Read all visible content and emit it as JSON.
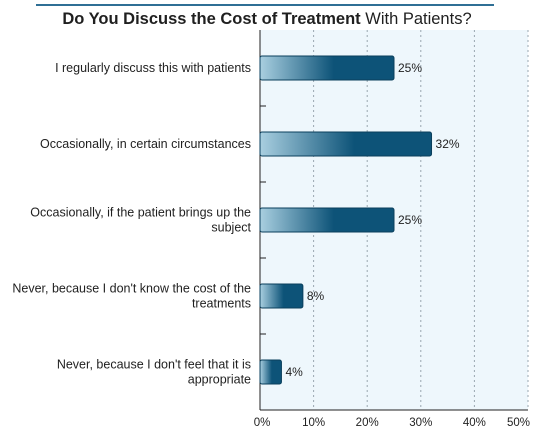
{
  "chart_data": {
    "type": "bar",
    "orientation": "horizontal",
    "title_bold": "Do You Discuss the Cost of Treatment",
    "title_rest": " With Patients?",
    "categories": [
      "I regularly discuss this with patients",
      "Occasionally, in certain circumstances",
      "Occasionally, if the patient brings up the subject",
      "Never, because I don't know the cost of the treatments",
      "Never, because I don't feel that it is appropriate"
    ],
    "category_lines": [
      [
        "I regularly discuss this with patients"
      ],
      [
        "Occasionally, in certain circumstances"
      ],
      [
        "Occasionally, if the patient brings up the",
        "subject"
      ],
      [
        "Never, because I don't know the cost of the",
        "treatments"
      ],
      [
        "Never, because I don't feel that it is",
        "appropriate"
      ]
    ],
    "values": [
      25,
      32,
      25,
      8,
      4
    ],
    "value_labels": [
      "25%",
      "32%",
      "25%",
      "8%",
      "4%"
    ],
    "xlim": [
      0,
      50
    ],
    "x_ticks": [
      0,
      10,
      20,
      30,
      40,
      50
    ],
    "x_tick_labels": [
      "0%",
      "10%",
      "20%",
      "30%",
      "40%",
      "50%"
    ],
    "grid": true,
    "colors": {
      "plot_background": "#eef7fc",
      "bar_light": "#a9cfe0",
      "bar_dark": "#0d5378",
      "bar_border": "#0a3f5c",
      "grid": "#9aa7b0",
      "axis": "#222222",
      "title_rule": "#2f6f95"
    }
  }
}
